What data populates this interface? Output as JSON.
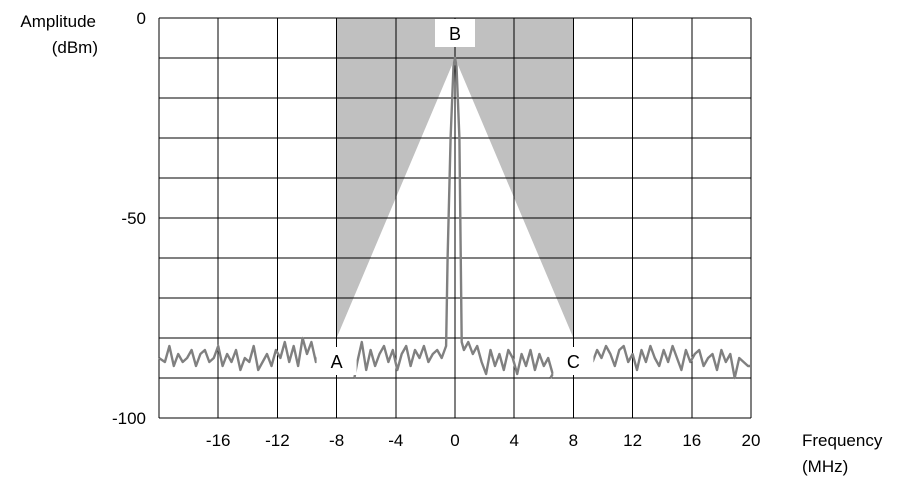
{
  "chart_data": {
    "type": "line",
    "title": "",
    "ylabel": [
      "Amplitude",
      "(dBm)"
    ],
    "xlabel": [
      "Frequency",
      "(MHz)"
    ],
    "xlim": [
      -20,
      20
    ],
    "ylim": [
      -100,
      0
    ],
    "grid": true,
    "x_ticks": [
      -16,
      -12,
      -8,
      -4,
      0,
      4,
      8,
      12,
      16,
      20
    ],
    "x_tick_labels": [
      "-16",
      "-12",
      "-8",
      "-4",
      "0",
      "4",
      "8",
      "12",
      "16",
      "20"
    ],
    "y_ticks": [
      0,
      -50,
      -100
    ],
    "y_tick_labels": [
      "0",
      "-50",
      "-100"
    ],
    "colors": {
      "trace": "#808080",
      "mask": "#c0c0c0",
      "grid": "#000000"
    },
    "mask": {
      "x_range": [
        -8,
        8
      ],
      "triangle_apex": [
        0,
        -10
      ],
      "triangle_base_y": -80
    },
    "annotations": [
      {
        "text": "A",
        "x": -8,
        "y": -86
      },
      {
        "text": "B",
        "x": 0,
        "y": -4
      },
      {
        "text": "C",
        "x": 8,
        "y": -86
      }
    ],
    "series": [
      {
        "x": [
          -20,
          -19.6,
          -19.3,
          -19,
          -18.7,
          -18.4,
          -18.1,
          -17.8,
          -17.5,
          -17.2,
          -16.9,
          -16.6,
          -16.3,
          -16,
          -15.7,
          -15.4,
          -15.1,
          -14.8,
          -14.5,
          -14.2,
          -13.9,
          -13.6,
          -13.3,
          -13,
          -12.7,
          -12.4,
          -12.1,
          -11.8,
          -11.5,
          -11.2,
          -10.9,
          -10.6,
          -10.3,
          -10,
          -9.7,
          -9.4,
          -9.1,
          -6.6,
          -6.3,
          -6,
          -5.7,
          -5.4,
          -5.1,
          -4.8,
          -4.5,
          -4.2,
          -3.9,
          -3.6,
          -3.3,
          -3,
          -2.7,
          -2.4,
          -2.1,
          -1.8,
          -1.5,
          -1.2,
          -0.9,
          -0.6,
          -0.5,
          -0.3,
          -0.1,
          0,
          0.1,
          0.3,
          0.45,
          0.6,
          0.9,
          1.2,
          1.5,
          1.8,
          2.1,
          2.4,
          2.7,
          3,
          3.3,
          3.6,
          3.9,
          4.2,
          4.5,
          4.8,
          5.1,
          5.4,
          5.7,
          6,
          6.3,
          6.6
        ],
        "y": [
          -85,
          -86,
          -82,
          -87,
          -84,
          -86,
          -85,
          -83,
          -87,
          -84,
          -83,
          -86,
          -85,
          -82,
          -87,
          -84,
          -86,
          -83,
          -88,
          -85,
          -86,
          -82,
          -88,
          -86,
          -84,
          -87,
          -83,
          -85,
          -81,
          -86,
          -82,
          -87,
          -80,
          -84,
          -81,
          -86,
          -83,
          -86,
          -81,
          -88,
          -83,
          -87,
          -84,
          -82,
          -86,
          -83,
          -88,
          -84,
          -82,
          -87,
          -83,
          -85,
          -82,
          -86,
          -84,
          -83,
          -85,
          -82,
          -60,
          -30,
          -12,
          -10,
          -12,
          -30,
          -81,
          -83,
          -81,
          -84,
          -82,
          -86,
          -89,
          -83,
          -87,
          -84,
          -88,
          -83,
          -85,
          -89,
          -84,
          -87,
          -83,
          -88,
          -84,
          -87,
          -85,
          -89
        ]
      },
      {
        "x": [
          -6.6,
          -6.7,
          -6.8
        ],
        "y": [
          -86,
          -88,
          -90
        ]
      },
      {
        "x": [
          6.6,
          6.45
        ],
        "y": [
          -89,
          -90
        ]
      },
      {
        "x": [
          9.3,
          9.6,
          9.9,
          10.2,
          10.5,
          10.8,
          11.1,
          11.4,
          11.7,
          12,
          12.3,
          12.6,
          12.9,
          13.2,
          13.5,
          13.8,
          14.1,
          14.4,
          14.7,
          15,
          15.3,
          15.6,
          15.9,
          16.2,
          16.5,
          16.8,
          17.1,
          17.4,
          17.7,
          18,
          18.3,
          18.6,
          18.9,
          19.2,
          19.5,
          19.8,
          20
        ],
        "y": [
          -86,
          -83,
          -85,
          -82,
          -84,
          -87,
          -83,
          -82,
          -86,
          -84,
          -88,
          -83,
          -86,
          -82,
          -85,
          -87,
          -83,
          -86,
          -82,
          -85,
          -88,
          -83,
          -86,
          -84,
          -83,
          -87,
          -85,
          -84,
          -88,
          -83,
          -86,
          -84,
          -90,
          -85,
          -86,
          -87,
          -87
        ]
      }
    ]
  }
}
